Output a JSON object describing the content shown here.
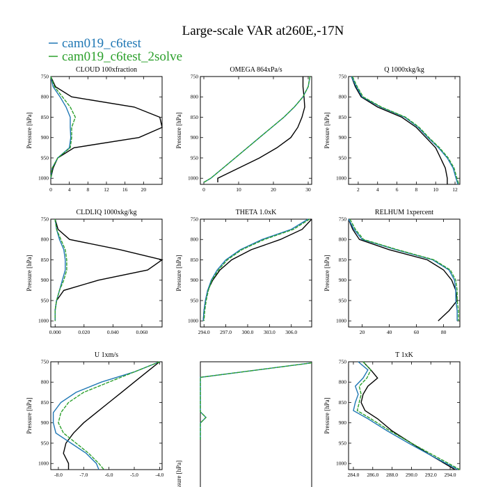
{
  "title": "Large-scale VAR at260E,-17N",
  "legend": [
    {
      "label": "cam019_c6test",
      "color": "#1f77b4"
    },
    {
      "label": "cam019_c6test_2solve",
      "color": "#2ca02c"
    }
  ],
  "colors": {
    "reference": "#000000",
    "series1": "#1f77b4",
    "series2": "#2ca02c"
  },
  "chart_data": [
    {
      "type": "line",
      "title": "CLOUD  100xfraction",
      "ylabel": "Pressure [hPa]",
      "xlim": [
        0,
        24
      ],
      "ylim": [
        1015,
        750
      ],
      "xticks": [
        {
          "v": 0,
          "l": "0"
        },
        {
          "v": 4,
          "l": "4"
        },
        {
          "v": 8,
          "l": "8"
        },
        {
          "v": 12,
          "l": "12"
        },
        {
          "v": 16,
          "l": "16"
        },
        {
          "v": 20,
          "l": "20"
        }
      ],
      "yticks": [
        {
          "v": 750,
          "l": "750"
        },
        {
          "v": 800,
          "l": "800"
        },
        {
          "v": 850,
          "l": "850"
        },
        {
          "v": 900,
          "l": "900"
        },
        {
          "v": 950,
          "l": "950"
        },
        {
          "v": 1000,
          "l": "1000"
        }
      ],
      "y": [
        750,
        775,
        800,
        825,
        850,
        875,
        900,
        925,
        950,
        975,
        1000
      ],
      "series": [
        {
          "name": "obs",
          "color": "#000000",
          "values": [
            0,
            1,
            4.5,
            18,
            23.5,
            24,
            19,
            5,
            1.5,
            0.5,
            0
          ]
        },
        {
          "name": "cam019_c6test",
          "color": "#1f77b4",
          "values": [
            0,
            0.5,
            2,
            3.3,
            4.2,
            4.2,
            4.3,
            4.0,
            1.5,
            0.3,
            0
          ]
        },
        {
          "name": "cam019_c6test_2solve",
          "color": "#2ca02c",
          "values": [
            0,
            0.8,
            2.5,
            4.2,
            5.3,
            4.5,
            4.5,
            4.2,
            1.5,
            0.3,
            0
          ]
        }
      ]
    },
    {
      "type": "line",
      "title": "OMEGA  864xPa/s",
      "ylabel": "Pressure [hPa]",
      "xlim": [
        -1,
        31
      ],
      "ylim": [
        1015,
        750
      ],
      "xticks": [
        {
          "v": 0,
          "l": "0"
        },
        {
          "v": 10,
          "l": "10"
        },
        {
          "v": 20,
          "l": "20"
        },
        {
          "v": 30,
          "l": "30"
        }
      ],
      "yticks": [
        {
          "v": 750,
          "l": "750"
        },
        {
          "v": 800,
          "l": "800"
        },
        {
          "v": 850,
          "l": "850"
        },
        {
          "v": 900,
          "l": "900"
        },
        {
          "v": 950,
          "l": "950"
        },
        {
          "v": 1000,
          "l": "1000"
        }
      ],
      "y": [
        750,
        775,
        800,
        825,
        850,
        875,
        900,
        925,
        950,
        975,
        1000,
        1010
      ],
      "series": [
        {
          "name": "obs",
          "color": "#000000",
          "values": [
            28.5,
            28.5,
            28.8,
            29,
            28.2,
            27,
            25,
            21,
            16,
            10,
            4,
            4
          ]
        },
        {
          "name": "cam019_c6test",
          "color": "#1f77b4",
          "values": [
            30.5,
            30,
            28.5,
            26,
            23,
            19.5,
            16,
            12.5,
            9,
            5.5,
            2,
            0
          ]
        },
        {
          "name": "cam019_c6test_2solve",
          "color": "#2ca02c",
          "values": [
            30.5,
            30,
            28.5,
            26,
            23,
            19.5,
            16,
            12.5,
            9,
            5.5,
            2,
            0
          ]
        }
      ]
    },
    {
      "type": "line",
      "title": "Q  1000xkg/kg",
      "ylabel": "Pressure [hPa]",
      "xlim": [
        1,
        12.5
      ],
      "ylim": [
        1015,
        750
      ],
      "xticks": [
        {
          "v": 2,
          "l": "2"
        },
        {
          "v": 4,
          "l": "4"
        },
        {
          "v": 6,
          "l": "6"
        },
        {
          "v": 8,
          "l": "8"
        },
        {
          "v": 10,
          "l": "10"
        },
        {
          "v": 12,
          "l": "12"
        }
      ],
      "yticks": [
        {
          "v": 750,
          "l": "750"
        },
        {
          "v": 800,
          "l": "800"
        },
        {
          "v": 850,
          "l": "850"
        },
        {
          "v": 900,
          "l": "900"
        },
        {
          "v": 950,
          "l": "950"
        },
        {
          "v": 1000,
          "l": "1000"
        }
      ],
      "y": [
        750,
        775,
        800,
        825,
        850,
        875,
        900,
        925,
        950,
        975,
        1000,
        1015
      ],
      "series": [
        {
          "name": "obs",
          "color": "#000000",
          "values": [
            1.3,
            1.7,
            2.3,
            4.0,
            6.5,
            8.0,
            9.0,
            10.0,
            10.5,
            11.0,
            11.2,
            11.2
          ]
        },
        {
          "name": "cam019_c6test",
          "color": "#1f77b4",
          "values": [
            1.3,
            1.8,
            2.4,
            4.3,
            6.8,
            8.2,
            9.2,
            10.3,
            11.2,
            11.8,
            12.1,
            12.3
          ]
        },
        {
          "name": "cam019_c6test_2solve",
          "color": "#2ca02c",
          "values": [
            1.4,
            1.9,
            2.5,
            4.4,
            6.9,
            8.3,
            9.3,
            10.4,
            11.3,
            11.9,
            12.2,
            12.4
          ]
        }
      ]
    },
    {
      "type": "line",
      "title": "CLDLIQ  1000xkg/kg",
      "ylabel": "Pressure [hPa]",
      "xlim": [
        -0.003,
        0.074
      ],
      "ylim": [
        1015,
        750
      ],
      "xticks": [
        {
          "v": 0,
          "l": "0.000"
        },
        {
          "v": 0.02,
          "l": "0.020"
        },
        {
          "v": 0.04,
          "l": "0.040"
        },
        {
          "v": 0.06,
          "l": "0.060"
        }
      ],
      "yticks": [
        {
          "v": 750,
          "l": "750"
        },
        {
          "v": 800,
          "l": "800"
        },
        {
          "v": 850,
          "l": "850"
        },
        {
          "v": 900,
          "l": "900"
        },
        {
          "v": 950,
          "l": "950"
        },
        {
          "v": 1000,
          "l": "1000"
        }
      ],
      "y": [
        750,
        775,
        800,
        825,
        850,
        875,
        900,
        925,
        950,
        975,
        1000
      ],
      "series": [
        {
          "name": "obs",
          "color": "#000000",
          "values": [
            0,
            0.002,
            0.01,
            0.045,
            0.074,
            0.064,
            0.03,
            0.006,
            0.001,
            0,
            0
          ]
        },
        {
          "name": "cam019_c6test",
          "color": "#1f77b4",
          "values": [
            0,
            0.001,
            0.003,
            0.006,
            0.007,
            0.007,
            0.005,
            0.003,
            0.001,
            0,
            0
          ]
        },
        {
          "name": "cam019_c6test_2solve",
          "color": "#2ca02c",
          "values": [
            0,
            0.001,
            0.004,
            0.007,
            0.008,
            0.008,
            0.006,
            0.003,
            0.001,
            0,
            0
          ]
        }
      ]
    },
    {
      "type": "line",
      "title": "THETA  1.0xK",
      "ylabel": "Pressure [hPa]",
      "xlim": [
        293.5,
        308.8
      ],
      "ylim": [
        1015,
        750
      ],
      "xticks": [
        {
          "v": 294,
          "l": "294.0"
        },
        {
          "v": 297,
          "l": "297.0"
        },
        {
          "v": 300,
          "l": "300.0"
        },
        {
          "v": 303,
          "l": "303.0"
        },
        {
          "v": 306,
          "l": "306.0"
        }
      ],
      "yticks": [
        {
          "v": 750,
          "l": "750"
        },
        {
          "v": 800,
          "l": "800"
        },
        {
          "v": 850,
          "l": "850"
        },
        {
          "v": 900,
          "l": "900"
        },
        {
          "v": 950,
          "l": "950"
        },
        {
          "v": 1000,
          "l": "1000"
        }
      ],
      "y": [
        750,
        775,
        800,
        825,
        850,
        875,
        900,
        925,
        950,
        975,
        1000
      ],
      "series": [
        {
          "name": "obs",
          "color": "#000000",
          "values": [
            308.8,
            307.5,
            304.5,
            300.5,
            297.8,
            296.2,
            295.2,
            294.5,
            294.2,
            294.0,
            293.9
          ]
        },
        {
          "name": "cam019_c6test",
          "color": "#1f77b4",
          "values": [
            308.3,
            306.0,
            302.0,
            299.0,
            297.0,
            295.8,
            295.0,
            294.5,
            294.2,
            294.0,
            293.9
          ]
        },
        {
          "name": "cam019_c6test_2solve",
          "color": "#2ca02c",
          "values": [
            308.5,
            306.3,
            302.3,
            299.2,
            297.2,
            296.0,
            295.1,
            294.6,
            294.3,
            294.1,
            294.0
          ]
        }
      ]
    },
    {
      "type": "line",
      "title": "RELHUM  1xpercent",
      "ylabel": "Pressure [hPa]",
      "xlim": [
        10,
        92
      ],
      "ylim": [
        1015,
        750
      ],
      "xticks": [
        {
          "v": 20,
          "l": "20"
        },
        {
          "v": 40,
          "l": "40"
        },
        {
          "v": 60,
          "l": "60"
        },
        {
          "v": 80,
          "l": "80"
        }
      ],
      "yticks": [
        {
          "v": 750,
          "l": "750"
        },
        {
          "v": 800,
          "l": "800"
        },
        {
          "v": 850,
          "l": "850"
        },
        {
          "v": 900,
          "l": "900"
        },
        {
          "v": 950,
          "l": "950"
        },
        {
          "v": 1000,
          "l": "1000"
        }
      ],
      "y": [
        750,
        775,
        800,
        825,
        850,
        875,
        900,
        925,
        950,
        975,
        1000
      ],
      "series": [
        {
          "name": "obs",
          "color": "#000000",
          "values": [
            10,
            13,
            18,
            40,
            68,
            80,
            86,
            89,
            90,
            84,
            76
          ]
        },
        {
          "name": "cam019_c6test",
          "color": "#1f77b4",
          "values": [
            10,
            14,
            20,
            45,
            72,
            84,
            88,
            89,
            89,
            90,
            90
          ]
        },
        {
          "name": "cam019_c6test_2solve",
          "color": "#2ca02c",
          "values": [
            11,
            15,
            21,
            46,
            73,
            85,
            89,
            90,
            90,
            91,
            91
          ]
        }
      ]
    },
    {
      "type": "line",
      "title": "U  1xm/s",
      "ylabel": "Pressure [hPa]",
      "xlim": [
        -8.3,
        -3.9
      ],
      "ylim": [
        1015,
        750
      ],
      "xticks": [
        {
          "v": -8,
          "l": "-8.0"
        },
        {
          "v": -7,
          "l": "-7.0"
        },
        {
          "v": -6,
          "l": "-6.0"
        },
        {
          "v": -5,
          "l": "-5.0"
        },
        {
          "v": -4,
          "l": "-4.0"
        }
      ],
      "yticks": [
        {
          "v": 750,
          "l": "750"
        },
        {
          "v": 800,
          "l": "800"
        },
        {
          "v": 850,
          "l": "850"
        },
        {
          "v": 900,
          "l": "900"
        },
        {
          "v": 950,
          "l": "950"
        },
        {
          "v": 1000,
          "l": "1000"
        }
      ],
      "y": [
        750,
        775,
        800,
        825,
        850,
        875,
        900,
        925,
        950,
        975,
        1000,
        1015
      ],
      "series": [
        {
          "name": "obs",
          "color": "#000000",
          "values": [
            -4.0,
            -4.5,
            -5.0,
            -5.5,
            -6.0,
            -6.5,
            -7.0,
            -7.4,
            -7.7,
            -7.8,
            -7.6,
            -7.6
          ]
        },
        {
          "name": "cam019_c6test",
          "color": "#1f77b4",
          "values": [
            -4.0,
            -5.0,
            -6.3,
            -7.3,
            -7.9,
            -8.2,
            -8.2,
            -8.1,
            -7.5,
            -6.9,
            -6.5,
            -6.4
          ]
        },
        {
          "name": "cam019_c6test_2solve",
          "color": "#2ca02c",
          "values": [
            -4.0,
            -5.0,
            -6.0,
            -7.0,
            -7.6,
            -7.9,
            -8.0,
            -7.8,
            -7.3,
            -6.8,
            -6.4,
            -6.2
          ]
        }
      ]
    },
    {
      "type": "line",
      "title": "",
      "ylabel": "Pressure [hPa]",
      "xlim": [
        0,
        1
      ],
      "ylim": [
        1000,
        750
      ],
      "xticks": [],
      "yticks": [],
      "y": [
        752,
        778,
        840,
        850,
        860,
        890
      ],
      "series": [
        {
          "name": "cam019_c6test",
          "color": "#1f77b4",
          "values": [
            1.0,
            0.0,
            0.0,
            0.05,
            0.0,
            0.0
          ]
        },
        {
          "name": "cam019_c6test_2solve",
          "color": "#2ca02c",
          "values": [
            1.0,
            0.0,
            0.0,
            0.05,
            0.0,
            0.0
          ]
        }
      ]
    },
    {
      "type": "line",
      "title": "T  1xK",
      "ylabel": "Pressure [hPa]",
      "xlim": [
        283.5,
        295.0
      ],
      "ylim": [
        1015,
        750
      ],
      "xticks": [
        {
          "v": 284,
          "l": "284.0"
        },
        {
          "v": 286,
          "l": "286.0"
        },
        {
          "v": 288,
          "l": "288.0"
        },
        {
          "v": 290,
          "l": "290.0"
        },
        {
          "v": 292,
          "l": "292.0"
        },
        {
          "v": 294,
          "l": "294.0"
        }
      ],
      "yticks": [
        {
          "v": 750,
          "l": "750"
        },
        {
          "v": 800,
          "l": "800"
        },
        {
          "v": 850,
          "l": "850"
        },
        {
          "v": 900,
          "l": "900"
        },
        {
          "v": 950,
          "l": "950"
        },
        {
          "v": 1000,
          "l": "1000"
        }
      ],
      "y": [
        750,
        770,
        790,
        810,
        830,
        850,
        870,
        890,
        920,
        950,
        980,
        1015
      ],
      "series": [
        {
          "name": "obs",
          "color": "#000000",
          "values": [
            285.0,
            285.8,
            286.5,
            285.5,
            285.0,
            284.8,
            285.2,
            286.5,
            288.0,
            290.0,
            292.0,
            294.5
          ]
        },
        {
          "name": "cam019_c6test",
          "color": "#1f77b4",
          "values": [
            284.5,
            285.5,
            285.0,
            284.2,
            284.5,
            284.2,
            284.0,
            285.5,
            287.5,
            289.7,
            292.0,
            294.8
          ]
        },
        {
          "name": "cam019_c6test_2solve",
          "color": "#2ca02c",
          "values": [
            285.0,
            285.8,
            285.4,
            284.6,
            284.8,
            284.6,
            284.4,
            285.8,
            287.8,
            290.0,
            292.3,
            295.0
          ]
        }
      ]
    }
  ]
}
